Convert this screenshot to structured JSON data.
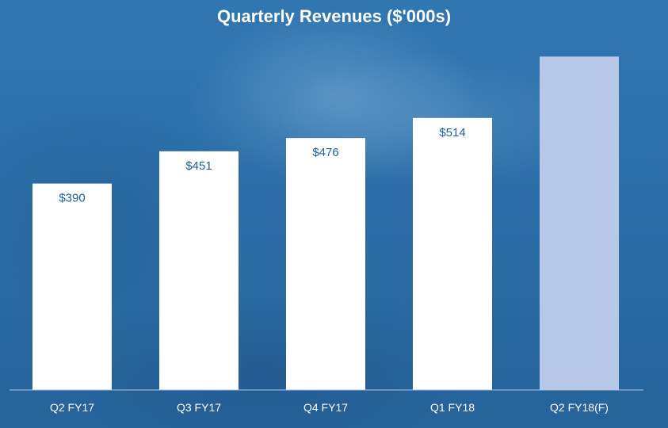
{
  "chart_data": {
    "type": "bar",
    "title": "Quarterly Revenues ($'000s)",
    "categories": [
      "Q2 FY17",
      "Q3 FY17",
      "Q4 FY17",
      "Q1 FY18",
      "Q2 FY18(F)"
    ],
    "values": [
      390,
      451,
      476,
      514,
      630
    ],
    "data_labels": [
      "$390",
      "$451",
      "$476",
      "$514",
      ""
    ],
    "forecast_flags": [
      false,
      false,
      false,
      false,
      true
    ],
    "ylim": [
      0,
      650
    ],
    "grid": false,
    "colors": {
      "actual_bar": "#ffffff",
      "forecast_bar": "#b7c8e8",
      "data_label": "#1f5f96",
      "category_label": "#ffffff",
      "baseline": "#a9c3de"
    }
  }
}
